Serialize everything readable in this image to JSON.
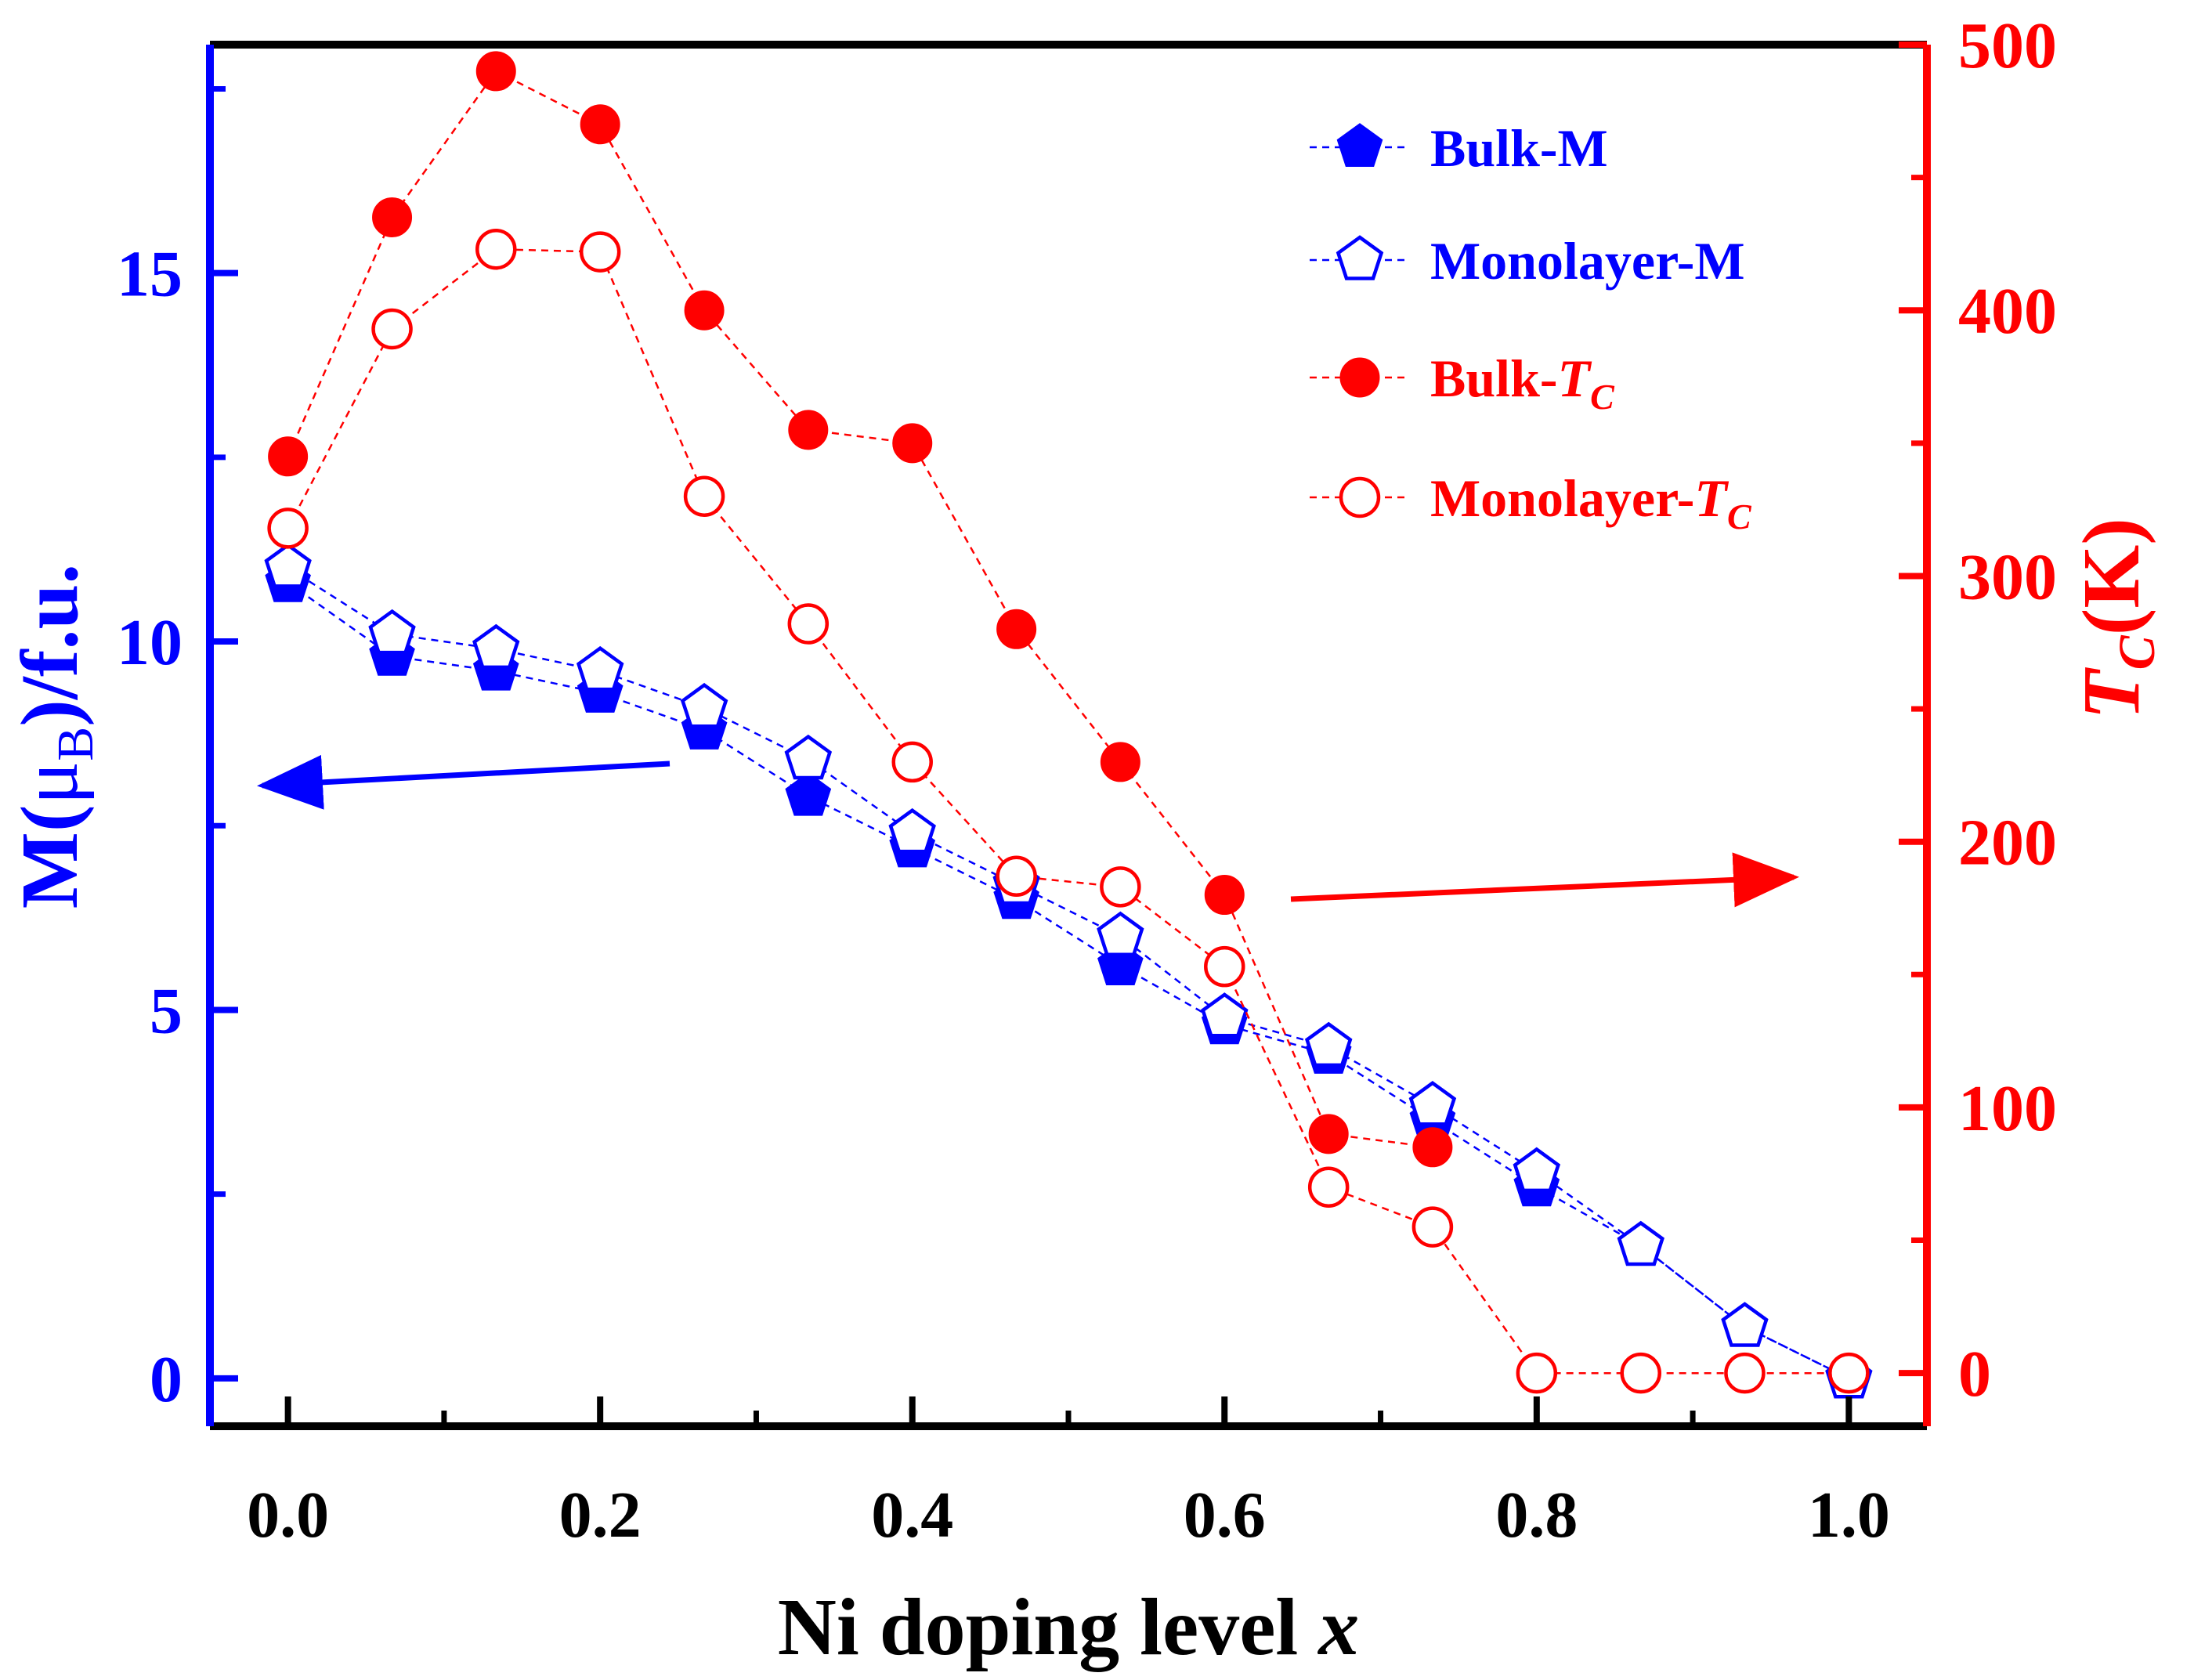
{
  "chart_data": {
    "type": "line",
    "x": [
      0,
      0.0667,
      0.1333,
      0.2,
      0.2667,
      0.3333,
      0.4,
      0.4667,
      0.5333,
      0.6,
      0.6667,
      0.7333,
      0.8,
      0.8667,
      0.9333,
      1.0
    ],
    "xlabel_main": "Ni doping level ",
    "xlabel_var": "x",
    "xlim": [
      -0.05,
      1.05
    ],
    "x_ticks": [
      0.0,
      0.2,
      0.4,
      0.6,
      0.8,
      1.0
    ],
    "x_tick_labels": [
      "0.0",
      "0.2",
      "0.4",
      "0.6",
      "0.8",
      "1.0"
    ],
    "left_axis": {
      "label_pre": "M(",
      "label_mu": "μ",
      "label_sub": "B",
      "label_post": ")/f.u.",
      "ylim": [
        -0.65,
        18.1
      ],
      "ticks": [
        0,
        5,
        10,
        15
      ],
      "tick_labels": [
        "0",
        "5",
        "10",
        "15"
      ],
      "color": "#0000ff"
    },
    "right_axis": {
      "label_main": "T",
      "label_sub": "C",
      "label_post": "(K)",
      "ylim": [
        -20,
        500
      ],
      "ticks": [
        0,
        100,
        200,
        300,
        400,
        500
      ],
      "tick_labels": [
        "0",
        "100",
        "200",
        "300",
        "400",
        "500"
      ],
      "color": "#ff0000"
    },
    "series": [
      {
        "name": "Bulk-M",
        "label_main": "Bulk-M",
        "label_sub": "",
        "axis": "left",
        "marker": "pentagon-filled",
        "color": "#0000ff",
        "x": [
          0,
          0.0667,
          0.1333,
          0.2,
          0.2667,
          0.3333,
          0.4,
          0.4667,
          0.5333,
          0.6,
          0.6667,
          0.7333,
          0.8,
          0.8667,
          0.9333,
          1.0
        ],
        "values": [
          10.8,
          9.8,
          9.6,
          9.3,
          8.8,
          7.9,
          7.2,
          6.5,
          5.6,
          4.8,
          4.4,
          3.5,
          2.6,
          1.8,
          0.7,
          0.0
        ]
      },
      {
        "name": "Monolayer-M",
        "label_main": "Monolayer-M",
        "label_sub": "",
        "axis": "left",
        "marker": "pentagon-open",
        "color": "#0000ff",
        "x": [
          0,
          0.0667,
          0.1333,
          0.2,
          0.2667,
          0.3333,
          0.4,
          0.4667,
          0.5333,
          0.6,
          0.6667,
          0.7333,
          0.8,
          0.8667,
          0.9333,
          1.0
        ],
        "values": [
          11.0,
          10.1,
          9.9,
          9.6,
          9.1,
          8.4,
          7.4,
          6.7,
          6.0,
          4.9,
          4.5,
          3.7,
          2.8,
          1.8,
          0.7,
          0.0
        ]
      },
      {
        "name": "Bulk-TC",
        "label_main": "Bulk-",
        "label_sub": "C",
        "axis": "right",
        "marker": "circle-filled",
        "color": "#ff0000",
        "x": [
          0,
          0.0667,
          0.1333,
          0.2,
          0.2667,
          0.3333,
          0.4,
          0.4667,
          0.5333,
          0.6,
          0.6667,
          0.7333
        ],
        "values": [
          345,
          435,
          490,
          470,
          400,
          355,
          350,
          280,
          230,
          180,
          90,
          85
        ]
      },
      {
        "name": "Monolayer-TC",
        "label_main": "Monolayer-",
        "label_sub": "C",
        "axis": "right",
        "marker": "circle-open",
        "color": "#ff0000",
        "x": [
          0,
          0.0667,
          0.1333,
          0.2,
          0.2667,
          0.3333,
          0.4,
          0.4667,
          0.5333,
          0.6,
          0.6667,
          0.7333,
          0.8,
          0.8667,
          0.9333,
          1.0
        ],
        "values": [
          318,
          393,
          423,
          422,
          330,
          282,
          230,
          187,
          183,
          153,
          70,
          55,
          0,
          0,
          0,
          0
        ]
      }
    ],
    "annotations": [
      {
        "type": "arrow",
        "direction": "left",
        "color": "#0000ff",
        "meaning": "points to left axis (M)"
      },
      {
        "type": "arrow",
        "direction": "right",
        "color": "#ff0000",
        "meaning": "points to right axis (TC)"
      }
    ],
    "legend_position": "top-right"
  }
}
